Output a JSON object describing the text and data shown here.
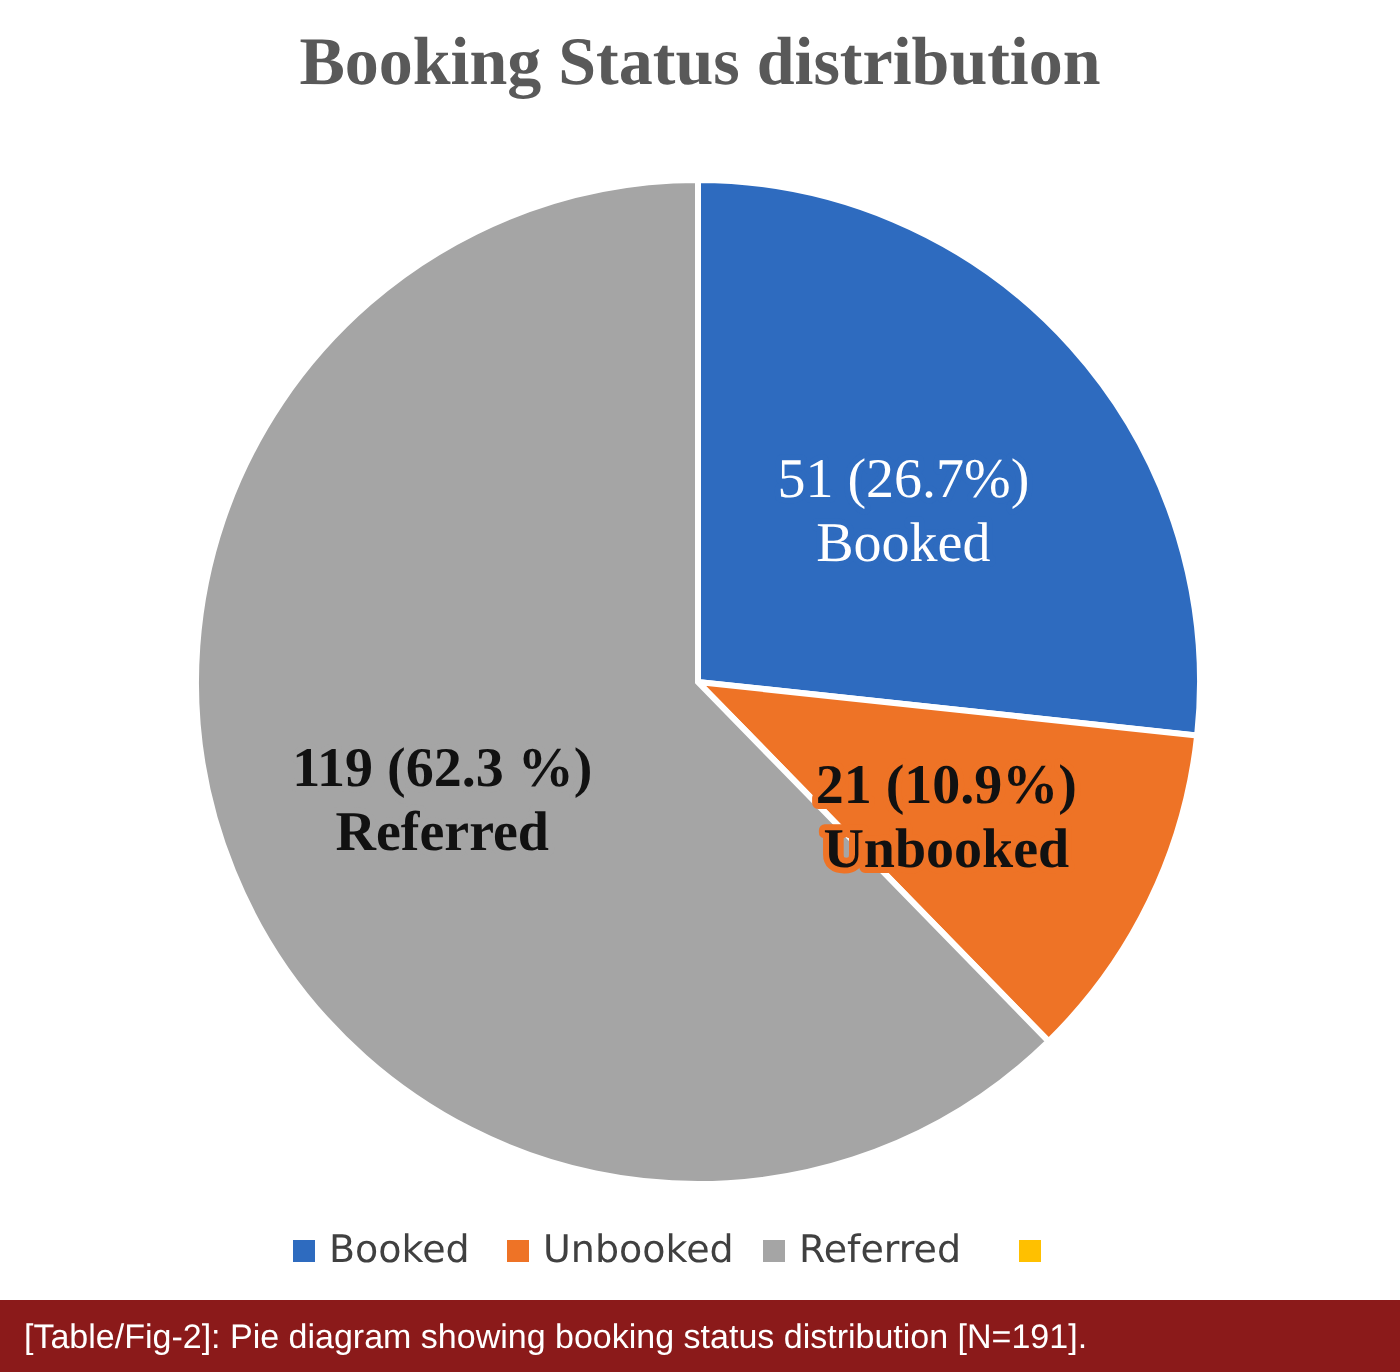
{
  "chart_data": {
    "type": "pie",
    "title": "Booking Status distribution",
    "categories": [
      "Booked",
      "Unbooked",
      "Referred",
      null
    ],
    "values": [
      51,
      21,
      119,
      0
    ],
    "colors": [
      "#2e6bbf",
      "#ee7326",
      "#a5a5a5",
      "#ffc000"
    ],
    "value_labels": [
      "51 (26.7%)",
      "21 (10.9%)",
      "119 (62.3 %)",
      null
    ],
    "legend": "bottom",
    "annotations": [
      "[Table/Fig-2]: Pie diagram showing booking status distribution [N=191]."
    ]
  }
}
